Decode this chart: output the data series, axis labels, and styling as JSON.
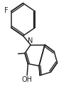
{
  "bg_color": "#ffffff",
  "line_color": "#222222",
  "line_width": 1.1,
  "figsize": [
    1.0,
    1.39
  ],
  "dpi": 100,
  "xlim": [
    0.0,
    1.0
  ],
  "ylim": [
    0.0,
    1.0
  ]
}
